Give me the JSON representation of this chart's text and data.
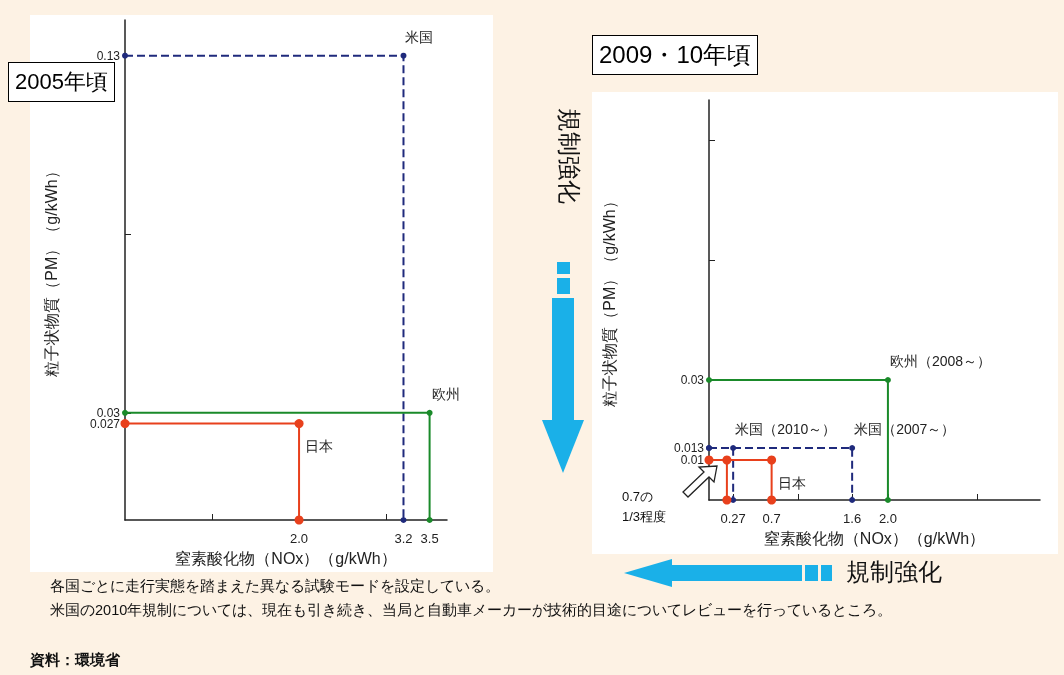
{
  "chart_data": [
    {
      "type": "line",
      "title": "2005年頃",
      "xlabel": "窒素酸化物（NOx）（g/kWh）",
      "ylabel": "粒子状物質（PM）（g/kWh）",
      "xlim": [
        0,
        3.7
      ],
      "ylim": [
        0,
        0.14
      ],
      "xticks": [
        {
          "value": 1,
          "label": null
        },
        {
          "value": 2,
          "label": "2.0"
        },
        {
          "value": 3,
          "label": null
        },
        3.2,
        3.5
      ],
      "yticks": [
        0.027,
        0.03,
        {
          "value": 0.08,
          "label": null
        },
        0.13
      ],
      "grid": false,
      "legend": false,
      "marker": "circle",
      "line_style": "solid",
      "series": [
        {
          "name": "米国",
          "color": "#1f2a7c",
          "x": [
            0,
            3.2,
            3.2
          ],
          "values": [
            0.13,
            0.13,
            0
          ],
          "line_style": "dashed"
        },
        {
          "name": "欧州",
          "color": "#1a8a2a",
          "x": [
            0,
            3.5,
            3.5
          ],
          "values": [
            0.03,
            0.03,
            0
          ]
        },
        {
          "name": "日本",
          "color": "#e8401c",
          "x": [
            0,
            2.0,
            2.0
          ],
          "values": [
            0.027,
            0.027,
            0
          ]
        }
      ]
    },
    {
      "type": "line",
      "title": "2009・10年頃",
      "xlabel": "窒素酸化物（NOx）（g/kWh）",
      "ylabel": "粒子状物質（PM）（g/kWh）",
      "xlim": [
        0,
        3.7
      ],
      "ylim": [
        0,
        0.1
      ],
      "xticks": [
        0.27,
        0.7,
        {
          "value": 1,
          "label": null
        },
        1.6,
        {
          "value": 2,
          "label": "2.0"
        },
        {
          "value": 3,
          "label": null
        }
      ],
      "yticks": [
        0.01,
        0.013,
        0.03,
        {
          "value": 0.06,
          "label": null
        },
        {
          "value": 0.09,
          "label": null
        }
      ],
      "grid": false,
      "legend": false,
      "marker": "circle",
      "line_style": "solid",
      "series": [
        {
          "name": "欧州（2008～）",
          "color": "#1a8a2a",
          "x": [
            0,
            2.0,
            2.0
          ],
          "values": [
            0.03,
            0.03,
            0
          ]
        },
        {
          "name": "米国（2007～）",
          "color": "#1f2a7c",
          "x": [
            0,
            1.6,
            1.6
          ],
          "values": [
            0.013,
            0.013,
            0
          ],
          "line_style": "dashed"
        },
        {
          "name": "米国（2010～）",
          "color": "#1f2a7c",
          "x": [
            0,
            0.27,
            0.27
          ],
          "values": [
            0.013,
            0.013,
            0
          ],
          "line_style": "dashed"
        },
        {
          "name": "日本",
          "color": "#e8401c",
          "x": [
            0,
            0.7,
            0.7
          ],
          "values": [
            0.01,
            0.01,
            0
          ]
        },
        {
          "color": "#e8401c",
          "x": [
            0.2,
            0.2
          ],
          "values": [
            0.01,
            0
          ]
        }
      ],
      "annotations": [
        "0.7の\n1/3程度",
        "規制強化",
        "規制強化",
        "各国ごとに走行実態を踏まえた異なる試験モードを設定している。",
        "米国の2010年規制については、現在も引き続き、当局と自動車メーカーが技術的目途についてレビューを行っているところ。",
        "資料：環境省"
      ]
    }
  ]
}
